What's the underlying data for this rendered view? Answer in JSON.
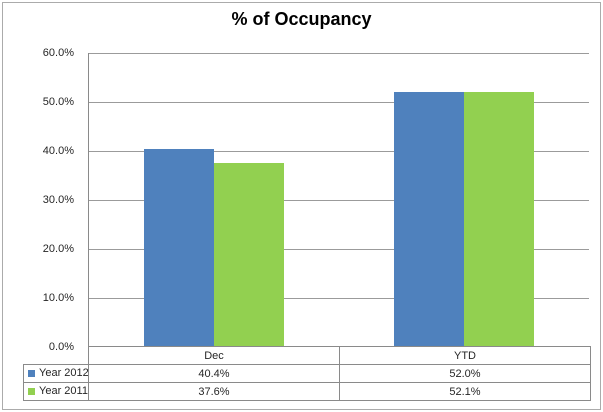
{
  "window": {
    "background": "#ffffff",
    "frame_border_color": "#ababab"
  },
  "chart": {
    "title": "% of Occupancy",
    "grid_color": "#9b9b9b",
    "axis_color": "#8a8a8a",
    "text_color": "#262626",
    "y_axis_labels": [
      "60.0%",
      "50.0%",
      "40.0%",
      "30.0%",
      "20.0%",
      "10.0%",
      "0.0%"
    ]
  },
  "data_table": {
    "categories": [
      "Dec",
      "YTD"
    ],
    "rows": [
      {
        "legend": "Year 2012",
        "swatch_color": "#4F81BD",
        "values": [
          "40.4%",
          "52.0%"
        ]
      },
      {
        "legend": "Year 2011",
        "swatch_color": "#92D050",
        "values": [
          "37.6%",
          "52.1%"
        ]
      }
    ]
  },
  "chart_data": {
    "type": "bar",
    "title": "% of Occupancy",
    "categories": [
      "Dec",
      "YTD"
    ],
    "series": [
      {
        "name": "Year 2012",
        "color": "#4F81BD",
        "values": [
          40.4,
          52.0
        ],
        "labels": [
          "40.4%",
          "52.0%"
        ]
      },
      {
        "name": "Year 2011",
        "color": "#92D050",
        "values": [
          37.6,
          52.1
        ],
        "labels": [
          "37.6%",
          "52.1%"
        ]
      }
    ],
    "xlabel": "",
    "ylabel": "",
    "ylim": [
      0,
      60
    ],
    "ytick_interval": 10,
    "ytick_format": "percent_1dp",
    "grid": true,
    "legend_position": "left-of-data-table"
  }
}
